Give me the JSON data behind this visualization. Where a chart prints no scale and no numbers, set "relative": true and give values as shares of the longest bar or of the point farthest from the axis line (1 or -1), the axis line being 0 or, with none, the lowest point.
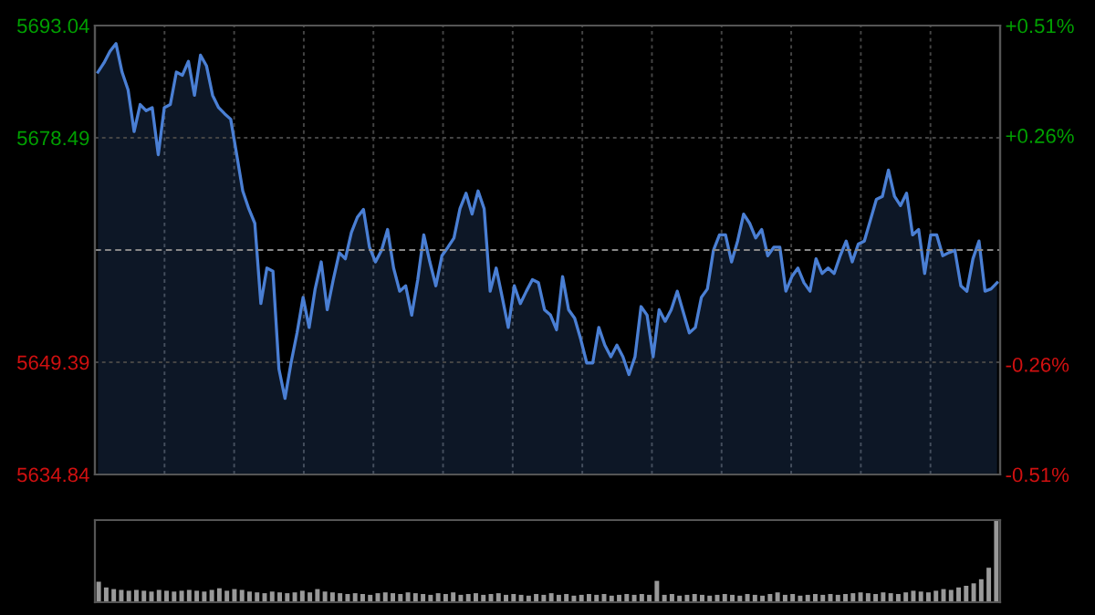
{
  "chart_data": [
    {
      "type": "area",
      "ylim": [
        5634.84,
        5693.04
      ],
      "yticks": [
        5634.84,
        5649.39,
        5678.49,
        5693.04
      ],
      "y2lim": [
        -0.51,
        0.51
      ],
      "y2ticks": [
        {
          "value": -0.51,
          "label": "-0.51%"
        },
        {
          "value": -0.26,
          "label": "-0.26%"
        },
        {
          "value": 0.26,
          "label": "+0.26%"
        },
        {
          "value": 0.51,
          "label": "+0.51%"
        }
      ],
      "grid": true,
      "ref_lines": [
        {
          "axis": "y",
          "value": 5663.94,
          "label": null,
          "color": "#888888",
          "line_style": "dashed"
        }
      ],
      "categories": [
        null,
        null,
        null,
        null,
        null,
        null,
        null,
        null,
        null,
        null,
        null,
        null,
        null,
        null,
        null,
        null,
        null,
        null,
        null,
        null,
        null,
        null,
        null,
        null,
        null,
        null,
        null,
        null,
        null,
        null,
        null,
        null,
        null,
        null,
        null,
        null,
        null,
        null,
        null,
        null,
        null,
        null,
        null,
        null,
        null,
        null,
        null,
        null,
        null,
        null,
        null,
        null,
        null,
        null,
        null,
        null,
        null,
        null,
        null,
        null,
        null,
        null,
        null,
        null,
        null,
        null,
        null,
        null,
        null,
        null,
        null,
        null,
        null,
        null,
        null,
        null,
        null,
        null,
        null,
        null,
        null,
        null,
        null,
        null,
        null,
        null,
        null,
        null,
        null,
        null,
        null,
        null,
        null,
        null,
        null,
        null,
        null,
        null,
        null,
        null,
        null,
        null,
        null,
        null,
        null,
        null,
        null,
        null,
        null,
        null,
        null,
        null,
        null,
        null,
        null,
        null,
        null,
        null,
        null,
        null,
        null,
        null,
        null,
        null,
        null,
        null,
        null,
        null,
        null,
        null,
        null,
        null,
        null,
        null,
        null,
        null,
        null,
        null,
        null,
        null,
        null,
        null,
        null,
        null,
        null,
        null,
        null,
        null,
        null,
        null
      ],
      "series": [
        {
          "color": "#4a7fd4",
          "values": [
            5687.0,
            5688.2,
            5689.7,
            5690.7,
            5687.0,
            5684.7,
            5679.3,
            5682.8,
            5682.0,
            5682.4,
            5676.3,
            5682.4,
            5682.8,
            5687.0,
            5686.6,
            5688.4,
            5684.0,
            5689.2,
            5687.8,
            5684.0,
            5682.4,
            5681.6,
            5680.9,
            5676.3,
            5671.6,
            5669.3,
            5667.4,
            5657.0,
            5661.6,
            5661.2,
            5648.5,
            5644.7,
            5649.3,
            5653.2,
            5657.8,
            5653.9,
            5658.9,
            5662.4,
            5656.2,
            5660.1,
            5663.6,
            5662.8,
            5666.2,
            5668.2,
            5669.2,
            5664.3,
            5662.4,
            5663.9,
            5666.6,
            5661.6,
            5658.6,
            5659.3,
            5655.5,
            5660.1,
            5665.9,
            5662.4,
            5659.3,
            5663.2,
            5664.3,
            5665.5,
            5669.3,
            5671.3,
            5668.6,
            5671.6,
            5669.3,
            5658.6,
            5661.6,
            5657.8,
            5653.9,
            5659.3,
            5657.0,
            5658.6,
            5660.1,
            5659.7,
            5656.2,
            5655.5,
            5653.6,
            5660.5,
            5656.2,
            5655.1,
            5652.4,
            5649.3,
            5649.3,
            5653.9,
            5651.6,
            5650.1,
            5651.6,
            5650.1,
            5647.8,
            5650.1,
            5656.6,
            5655.5,
            5650.1,
            5656.2,
            5654.7,
            5656.2,
            5658.6,
            5655.9,
            5653.2,
            5653.9,
            5657.8,
            5658.9,
            5663.9,
            5665.9,
            5665.9,
            5662.4,
            5665.1,
            5668.6,
            5667.4,
            5665.5,
            5666.6,
            5663.2,
            5664.3,
            5664.3,
            5658.6,
            5660.5,
            5661.6,
            5659.7,
            5658.6,
            5662.8,
            5660.9,
            5661.6,
            5660.9,
            5663.2,
            5665.1,
            5662.4,
            5664.7,
            5665.1,
            5667.8,
            5670.5,
            5670.9,
            5674.3,
            5670.9,
            5669.7,
            5671.3,
            5665.9,
            5666.6,
            5660.9,
            5665.9,
            5665.9,
            5663.2,
            5663.6,
            5663.9,
            5659.3,
            5658.6,
            5662.8,
            5665.1,
            5658.6,
            5658.9,
            5659.7
          ]
        }
      ]
    },
    {
      "type": "bar",
      "relative": true,
      "grid": false,
      "color": "#999999",
      "categories": [
        null,
        null,
        null,
        null,
        null,
        null,
        null,
        null,
        null,
        null,
        null,
        null,
        null,
        null,
        null,
        null,
        null,
        null,
        null,
        null,
        null,
        null,
        null,
        null,
        null,
        null,
        null,
        null,
        null,
        null,
        null,
        null,
        null,
        null,
        null,
        null,
        null,
        null,
        null,
        null,
        null,
        null,
        null,
        null,
        null,
        null,
        null,
        null,
        null,
        null,
        null,
        null,
        null,
        null,
        null,
        null,
        null,
        null,
        null,
        null,
        null,
        null,
        null,
        null,
        null,
        null,
        null,
        null,
        null,
        null,
        null,
        null,
        null,
        null,
        null,
        null,
        null,
        null,
        null,
        null,
        null,
        null,
        null,
        null,
        null,
        null,
        null,
        null,
        null,
        null,
        null,
        null,
        null,
        null,
        null,
        null,
        null,
        null,
        null,
        null,
        null,
        null,
        null,
        null,
        null,
        null,
        null,
        null,
        null,
        null,
        null,
        null,
        null,
        null,
        null,
        null,
        null,
        null,
        null,
        null
      ],
      "values": [
        0.25,
        0.18,
        0.16,
        0.15,
        0.14,
        0.15,
        0.14,
        0.13,
        0.15,
        0.14,
        0.13,
        0.14,
        0.15,
        0.14,
        0.13,
        0.15,
        0.17,
        0.14,
        0.16,
        0.15,
        0.13,
        0.12,
        0.11,
        0.13,
        0.12,
        0.11,
        0.12,
        0.14,
        0.12,
        0.16,
        0.13,
        0.12,
        0.11,
        0.1,
        0.11,
        0.1,
        0.09,
        0.11,
        0.12,
        0.11,
        0.1,
        0.12,
        0.11,
        0.1,
        0.09,
        0.11,
        0.1,
        0.12,
        0.09,
        0.1,
        0.11,
        0.09,
        0.1,
        0.11,
        0.09,
        0.1,
        0.09,
        0.08,
        0.1,
        0.09,
        0.11,
        0.09,
        0.1,
        0.08,
        0.09,
        0.1,
        0.09,
        0.1,
        0.08,
        0.09,
        0.1,
        0.09,
        0.1,
        0.09,
        0.26,
        0.09,
        0.1,
        0.08,
        0.09,
        0.1,
        0.09,
        0.08,
        0.09,
        0.1,
        0.09,
        0.08,
        0.1,
        0.09,
        0.08,
        0.1,
        0.12,
        0.09,
        0.1,
        0.08,
        0.09,
        0.1,
        0.09,
        0.1,
        0.09,
        0.1,
        0.11,
        0.12,
        0.11,
        0.1,
        0.12,
        0.11,
        0.1,
        0.12,
        0.14,
        0.13,
        0.12,
        0.14,
        0.16,
        0.15,
        0.18,
        0.2,
        0.23,
        0.28,
        0.42,
        1.0
      ]
    }
  ]
}
